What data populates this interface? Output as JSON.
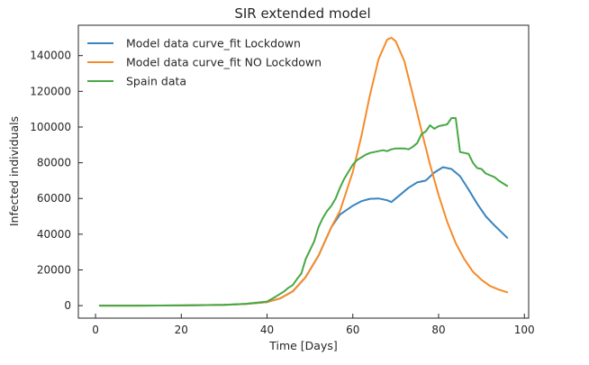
{
  "chart_data": {
    "type": "line",
    "title": "SIR extended model",
    "xlabel": "Time [Days]",
    "ylabel": "Infected individuals",
    "xlim": [
      -4,
      101
    ],
    "ylim": [
      -7000,
      157000
    ],
    "xticks": [
      0,
      20,
      40,
      60,
      80,
      100
    ],
    "yticks": [
      0,
      20000,
      40000,
      60000,
      80000,
      100000,
      120000,
      140000
    ],
    "grid": false,
    "legend_position": "top-left",
    "series": [
      {
        "name": "Model data curve_fit Lockdown",
        "color": "#3a85bf",
        "x": [
          1,
          10,
          20,
          30,
          35,
          40,
          43,
          46,
          49,
          52,
          55,
          57,
          60,
          62,
          64,
          66,
          68,
          69,
          71,
          73,
          75,
          77,
          79,
          81,
          83,
          85,
          87,
          89,
          91,
          93,
          96
        ],
        "y": [
          0,
          0,
          100,
          400,
          900,
          2000,
          4000,
          8000,
          16000,
          28000,
          44000,
          51000,
          56000,
          58500,
          59800,
          60000,
          59000,
          58000,
          62000,
          66000,
          69000,
          70000,
          74500,
          77500,
          76500,
          72500,
          65000,
          57000,
          50000,
          45000,
          38000
        ]
      },
      {
        "name": "Model data curve_fit NO Lockdown",
        "color": "#f68b2a",
        "x": [
          1,
          10,
          20,
          30,
          35,
          40,
          43,
          46,
          49,
          52,
          55,
          57,
          60,
          62,
          64,
          66,
          68,
          69,
          70,
          72,
          74,
          76,
          78,
          80,
          82,
          84,
          86,
          88,
          90,
          92,
          94,
          96
        ],
        "y": [
          0,
          0,
          100,
          400,
          900,
          2000,
          4000,
          8000,
          16000,
          28000,
          44000,
          53000,
          75000,
          95000,
          118000,
          138000,
          149000,
          150000,
          148000,
          137000,
          118000,
          98000,
          79000,
          62000,
          47000,
          35000,
          26000,
          19000,
          14500,
          11000,
          9000,
          7500
        ]
      },
      {
        "name": "Spain data",
        "color": "#47a844",
        "x": [
          1,
          10,
          20,
          30,
          35,
          40,
          42,
          44,
          45,
          46,
          47,
          48,
          49,
          50,
          51,
          52,
          53,
          54,
          55,
          56,
          57,
          58,
          59,
          60,
          61,
          62,
          63,
          64,
          65,
          66,
          67,
          68,
          69,
          70,
          71,
          72,
          73,
          74,
          75,
          76,
          77,
          78,
          79,
          80,
          81,
          82,
          83,
          84,
          85,
          86,
          87,
          88,
          89,
          90,
          91,
          92,
          93,
          94,
          95,
          96
        ],
        "y": [
          0,
          0,
          100,
          400,
          1000,
          2300,
          5000,
          8000,
          10000,
          11500,
          15000,
          18000,
          26000,
          31000,
          36000,
          44000,
          49000,
          53000,
          56000,
          60000,
          66000,
          71000,
          75000,
          79000,
          81500,
          83000,
          84500,
          85500,
          86000,
          86500,
          87000,
          86500,
          87500,
          88000,
          88000,
          88000,
          87500,
          89000,
          91000,
          96000,
          97500,
          101000,
          99000,
          100500,
          101000,
          101500,
          105000,
          105000,
          86000,
          85500,
          85000,
          80000,
          77000,
          76500,
          74000,
          73000,
          72000,
          70000,
          68500,
          67000
        ]
      }
    ]
  }
}
